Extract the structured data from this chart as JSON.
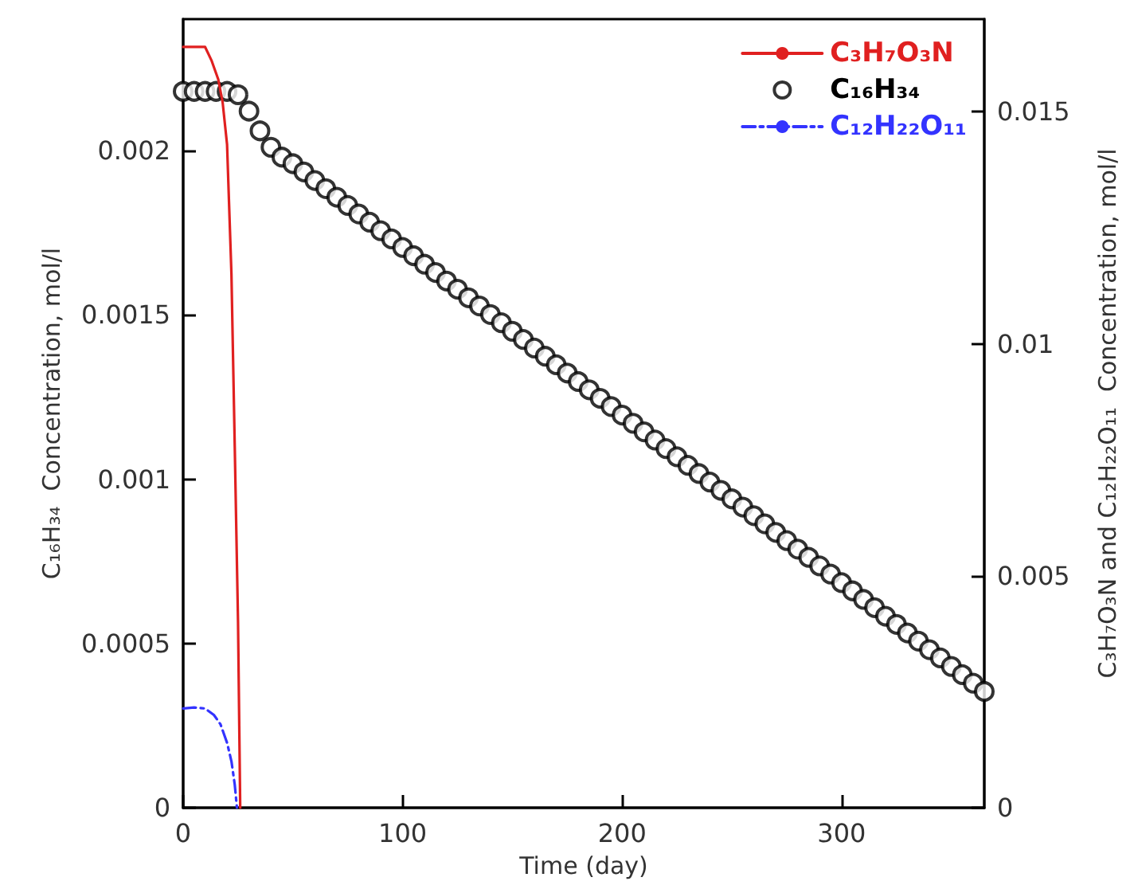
{
  "chart_data": {
    "type": "line",
    "xlabel": "Time (day)",
    "ylabel": "C₁₆H₃₄  Concentration, mol/l",
    "y2label": "C₃H₇O₃N and C₁₂H₂₂O₁₁  Concentration, mol/l",
    "xlim": [
      0,
      365
    ],
    "xticks": [
      0,
      100,
      200,
      300
    ],
    "ylim": [
      0,
      0.0024
    ],
    "yticks": [
      0,
      0.0005,
      0.001,
      0.0015,
      0.002
    ],
    "y2lim": [
      0,
      0.017
    ],
    "y2ticks": [
      0,
      0.005,
      0.01,
      0.015
    ],
    "grid": false,
    "legend": "top right",
    "series": [
      {
        "name": "C₃H₇O₃N",
        "axis": "y2",
        "color": "#e02020",
        "line_style": "solid",
        "x": [
          0,
          10,
          13,
          16,
          18,
          20,
          22,
          23.5,
          25,
          26
        ],
        "values": [
          0.0164,
          0.0164,
          0.0161,
          0.0157,
          0.0152,
          0.0143,
          0.0115,
          0.0078,
          0.004,
          0
        ]
      },
      {
        "name": "C₁₆H₃₄",
        "type": "scatter",
        "marker": "circle",
        "color": "#000000",
        "x": [
          0,
          5,
          10,
          15,
          20,
          25,
          30,
          35,
          40,
          45,
          50,
          55,
          60,
          65,
          70,
          75,
          80,
          85,
          90,
          95,
          100,
          105,
          110,
          115,
          120,
          125,
          130,
          135,
          140,
          145,
          150,
          155,
          160,
          165,
          170,
          175,
          180,
          185,
          190,
          195,
          200,
          205,
          210,
          215,
          220,
          225,
          230,
          235,
          240,
          245,
          250,
          255,
          260,
          265,
          270,
          275,
          280,
          285,
          290,
          295,
          300,
          305,
          310,
          315,
          320,
          325,
          330,
          335,
          340,
          345,
          350,
          355,
          360,
          365
        ],
        "values": [
          0.00218,
          0.00218,
          0.00218,
          0.00218,
          0.00218,
          0.00217,
          0.00212,
          0.00206,
          0.00201,
          0.00198,
          0.00196,
          0.001935,
          0.001909,
          0.001884,
          0.001858,
          0.001833,
          0.001807,
          0.001782,
          0.001756,
          0.001731,
          0.001705,
          0.00168,
          0.001654,
          0.001629,
          0.001603,
          0.001578,
          0.001552,
          0.001527,
          0.001501,
          0.001476,
          0.00145,
          0.001425,
          0.001399,
          0.001374,
          0.001348,
          0.001323,
          0.001297,
          0.001272,
          0.001246,
          0.001221,
          0.001195,
          0.00117,
          0.001144,
          0.001119,
          0.001093,
          0.001068,
          0.001042,
          0.001017,
          0.000991,
          0.000966,
          0.00094,
          0.000915,
          0.000889,
          0.000864,
          0.000838,
          0.000813,
          0.000787,
          0.000762,
          0.000736,
          0.000711,
          0.000685,
          0.00066,
          0.000634,
          0.000609,
          0.000583,
          0.000558,
          0.000532,
          0.000507,
          0.000481,
          0.000456,
          0.00043,
          0.000405,
          0.000379,
          0.000354
        ]
      },
      {
        "name": "C₁₂H₂₂O₁₁",
        "axis": "y2",
        "color": "#3333ff",
        "line_style": "dashed",
        "x": [
          0,
          5,
          10,
          14,
          17,
          20,
          22,
          23.5,
          24.5
        ],
        "values": [
          0.00214,
          0.00216,
          0.00214,
          0.002,
          0.0018,
          0.0014,
          0.001,
          0.0005,
          0
        ]
      }
    ]
  }
}
